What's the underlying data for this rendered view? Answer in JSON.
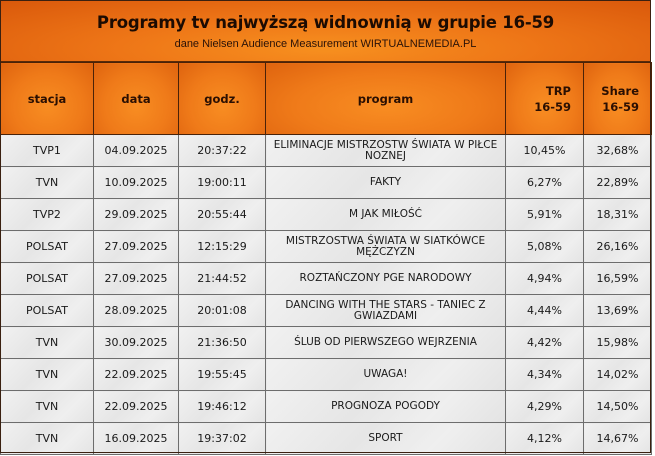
{
  "header": {
    "title": "Programy tv  najwyższą widnownią w grupie 16-59",
    "subtitle": "dane Nielsen Audience Measurement WIRTUALNEMEDIA.PL"
  },
  "colors": {
    "accent_orange": "#f58220",
    "accent_dark_orange": "#d9580b",
    "row_bg": "#ececec",
    "text_dark": "#1a1a1a"
  },
  "table": {
    "columns": [
      {
        "label": "stacja"
      },
      {
        "label": "data"
      },
      {
        "label": "godz."
      },
      {
        "label": "program"
      },
      {
        "label": "TRP",
        "label2": "16-59"
      },
      {
        "label": "Share",
        "label2": "16-59"
      }
    ],
    "rows": [
      {
        "stacja": "TVP1",
        "data": "04.09.2025",
        "godz": "20:37:22",
        "program": "ELIMINACJE MISTRZOSTW ŚWIATA W PIŁCE NOZNEJ",
        "trp": "10,45%",
        "share": "32,68%"
      },
      {
        "stacja": "TVN",
        "data": "10.09.2025",
        "godz": "19:00:11",
        "program": "FAKTY",
        "trp": "6,27%",
        "share": "22,89%"
      },
      {
        "stacja": "TVP2",
        "data": "29.09.2025",
        "godz": "20:55:44",
        "program": "M JAK MIŁOŚĆ",
        "trp": "5,91%",
        "share": "18,31%"
      },
      {
        "stacja": "POLSAT",
        "data": "27.09.2025",
        "godz": "12:15:29",
        "program": "MISTRZOSTWA ŚWIATA W SIATKÓWCE MĘŻCZYZN",
        "trp": "5,08%",
        "share": "26,16%"
      },
      {
        "stacja": "POLSAT",
        "data": "27.09.2025",
        "godz": "21:44:52",
        "program": "ROZTAŃCZONY PGE NARODOWY",
        "trp": "4,94%",
        "share": "16,59%"
      },
      {
        "stacja": "POLSAT",
        "data": "28.09.2025",
        "godz": "20:01:08",
        "program": "DANCING WITH THE STARS - TANIEC Z GWIAZDAMI",
        "trp": "4,44%",
        "share": "13,69%"
      },
      {
        "stacja": "TVN",
        "data": "30.09.2025",
        "godz": "21:36:50",
        "program": "ŚLUB OD PIERWSZEGO WEJRZENIA",
        "trp": "4,42%",
        "share": "15,98%"
      },
      {
        "stacja": "TVN",
        "data": "22.09.2025",
        "godz": "19:55:45",
        "program": "UWAGA!",
        "trp": "4,34%",
        "share": "14,02%"
      },
      {
        "stacja": "TVN",
        "data": "22.09.2025",
        "godz": "19:46:12",
        "program": "PROGNOZA POGODY",
        "trp": "4,29%",
        "share": "14,50%"
      },
      {
        "stacja": "TVN",
        "data": "16.09.2025",
        "godz": "19:37:02",
        "program": "SPORT",
        "trp": "4,12%",
        "share": "14,67%"
      }
    ]
  }
}
